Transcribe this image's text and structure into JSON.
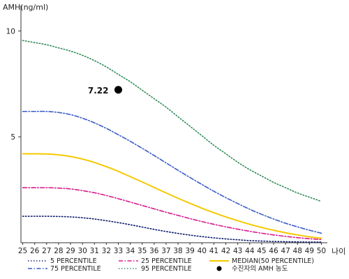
{
  "chart_data": {
    "type": "line",
    "title": "",
    "ylabel": "AMH(ng/ml)",
    "xlabel": "나이",
    "ylim": [
      0,
      11
    ],
    "yticks": [
      5,
      10
    ],
    "x": [
      25,
      26,
      27,
      28,
      29,
      30,
      31,
      32,
      33,
      34,
      35,
      36,
      37,
      38,
      39,
      40,
      41,
      42,
      43,
      44,
      45,
      46,
      47,
      48,
      49,
      50
    ],
    "series": [
      {
        "name": "5 PERCENTILE",
        "color": "#0a1a6b",
        "style": "dot",
        "values": [
          1.25,
          1.25,
          1.25,
          1.24,
          1.22,
          1.18,
          1.12,
          1.04,
          0.95,
          0.85,
          0.74,
          0.63,
          0.53,
          0.44,
          0.36,
          0.29,
          0.23,
          0.18,
          0.14,
          0.1,
          0.08,
          0.06,
          0.05,
          0.04,
          0.03,
          0.03
        ]
      },
      {
        "name": "25 PERCENTILE",
        "color": "#d81b8c",
        "style": "dashdot",
        "values": [
          2.6,
          2.6,
          2.6,
          2.58,
          2.54,
          2.46,
          2.36,
          2.23,
          2.08,
          1.92,
          1.76,
          1.6,
          1.44,
          1.29,
          1.14,
          1.0,
          0.87,
          0.75,
          0.64,
          0.54,
          0.45,
          0.37,
          0.3,
          0.24,
          0.19,
          0.15
        ]
      },
      {
        "name": "MEDIAN(50 PERCENTILE)",
        "color": "#f5c800",
        "style": "solid",
        "values": [
          4.2,
          4.2,
          4.19,
          4.15,
          4.07,
          3.95,
          3.79,
          3.59,
          3.37,
          3.12,
          2.87,
          2.61,
          2.35,
          2.1,
          1.86,
          1.63,
          1.42,
          1.22,
          1.04,
          0.87,
          0.72,
          0.59,
          0.47,
          0.37,
          0.28,
          0.21
        ]
      },
      {
        "name": "75 PERCENTILE",
        "color": "#3a5bc7",
        "style": "dashdot",
        "values": [
          6.2,
          6.2,
          6.2,
          6.15,
          6.05,
          5.88,
          5.66,
          5.4,
          5.1,
          4.79,
          4.46,
          4.12,
          3.77,
          3.42,
          3.08,
          2.75,
          2.43,
          2.13,
          1.85,
          1.58,
          1.34,
          1.12,
          0.92,
          0.75,
          0.59,
          0.45
        ]
      },
      {
        "name": "95 PERCENTILE",
        "color": "#2e8b57",
        "style": "dot",
        "values": [
          9.55,
          9.45,
          9.35,
          9.2,
          9.05,
          8.85,
          8.6,
          8.3,
          7.95,
          7.6,
          7.2,
          6.8,
          6.4,
          5.95,
          5.5,
          5.05,
          4.6,
          4.2,
          3.8,
          3.45,
          3.15,
          2.85,
          2.6,
          2.35,
          2.15,
          1.95
        ]
      }
    ],
    "annotation": {
      "x": 33,
      "y": 7.22,
      "label": "7.22",
      "color": "#000000"
    },
    "marker_legend": "수진자의 AMH 농도",
    "grid": false,
    "legend": "bottom"
  }
}
